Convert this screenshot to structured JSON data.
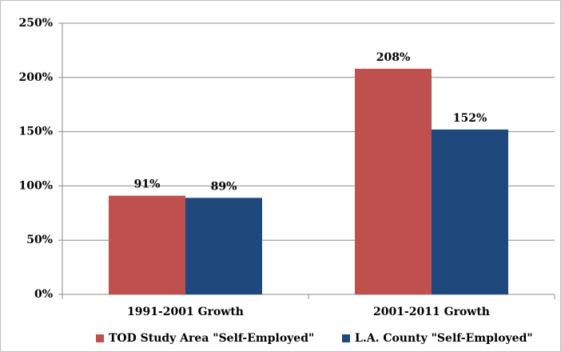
{
  "chart_data": {
    "type": "bar",
    "categories": [
      "1991-2001 Growth",
      "2001-2011 Growth"
    ],
    "series": [
      {
        "name": "TOD Study Area \"Self-Employed\"",
        "color": "#c0504d",
        "values": [
          91,
          208
        ],
        "value_labels": [
          "91%",
          "208%"
        ]
      },
      {
        "name": "L.A. County \"Self-Employed\"",
        "color": "#1f497d",
        "values": [
          89,
          152
        ],
        "value_labels": [
          "89%",
          "152%"
        ]
      }
    ],
    "ylim": [
      0,
      250
    ],
    "yticks": [
      {
        "value": 0,
        "label": "0%"
      },
      {
        "value": 50,
        "label": "50%"
      },
      {
        "value": 100,
        "label": "100%"
      },
      {
        "value": 150,
        "label": "150%"
      },
      {
        "value": 200,
        "label": "200%"
      },
      {
        "value": 250,
        "label": "250%"
      }
    ],
    "grid": true,
    "legend": "bottom"
  }
}
